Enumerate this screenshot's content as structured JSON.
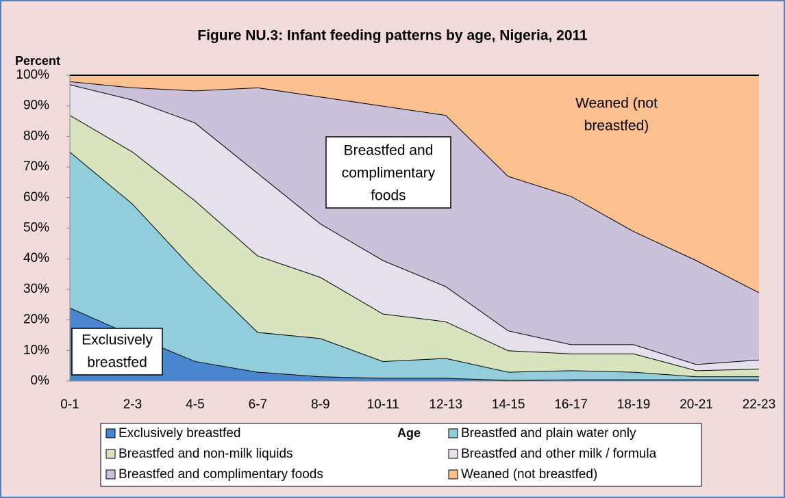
{
  "chart_data": {
    "type": "stacked_area",
    "title": "Figure NU.3: Infant feeding patterns by age, Nigeria, 2011",
    "y_label": "Percent",
    "x_label": "Age",
    "categories": [
      "0-1",
      "2-3",
      "4-5",
      "6-7",
      "8-9",
      "10-11",
      "12-13",
      "14-15",
      "16-17",
      "18-19",
      "20-21",
      "22-23"
    ],
    "ylim": [
      0,
      100
    ],
    "yticks": [
      {
        "value": 0,
        "label": "0%"
      },
      {
        "value": 10,
        "label": "10%"
      },
      {
        "value": 20,
        "label": "20%"
      },
      {
        "value": 30,
        "label": "30%"
      },
      {
        "value": 40,
        "label": "40%"
      },
      {
        "value": 50,
        "label": "50%"
      },
      {
        "value": 60,
        "label": "60%"
      },
      {
        "value": 70,
        "label": "70%"
      },
      {
        "value": 80,
        "label": "80%"
      },
      {
        "value": 90,
        "label": "90%"
      },
      {
        "value": 100,
        "label": "100%"
      }
    ],
    "series": [
      {
        "name": "Exclusively breastfed",
        "color": "#4a86d0",
        "values": [
          24,
          15,
          6.5,
          3,
          1.5,
          1,
          1,
          0.3,
          0.5,
          0.5,
          0.5,
          0.5
        ]
      },
      {
        "name": "Breastfed and plain water only",
        "color": "#92cddc",
        "values": [
          51,
          43,
          29.5,
          13,
          12.5,
          5.5,
          6.5,
          2.7,
          3,
          2.5,
          1,
          1
        ]
      },
      {
        "name": "Breastfed and non-milk liquids",
        "color": "#d7e4bd",
        "values": [
          12,
          17,
          23,
          25,
          20,
          15.5,
          12,
          7,
          5.5,
          6,
          2,
          2.5
        ]
      },
      {
        "name": "Breastfed and other milk / formula",
        "color": "#e6e0ec",
        "values": [
          10,
          17,
          25.5,
          27,
          17.5,
          17.5,
          11.5,
          6.5,
          3,
          3,
          2,
          3
        ]
      },
      {
        "name": "Breastfed and complimentary foods",
        "color": "#ccc1da",
        "values": [
          1,
          4,
          10.5,
          28,
          41.5,
          50.5,
          56,
          50.5,
          48.5,
          37,
          34,
          22
        ]
      },
      {
        "name": "Weaned (not breastfed)",
        "color": "#fac090",
        "values": [
          2,
          4,
          5,
          4,
          7,
          10,
          13,
          33,
          39.5,
          51,
          60.5,
          71
        ]
      }
    ],
    "annotations": [
      {
        "lines": [
          "Exclusively",
          "breastfed"
        ]
      },
      {
        "lines": [
          "Breastfed and",
          "complimentary",
          "foods"
        ]
      },
      {
        "lines": [
          "Weaned (not",
          "breastfed)"
        ]
      }
    ]
  }
}
